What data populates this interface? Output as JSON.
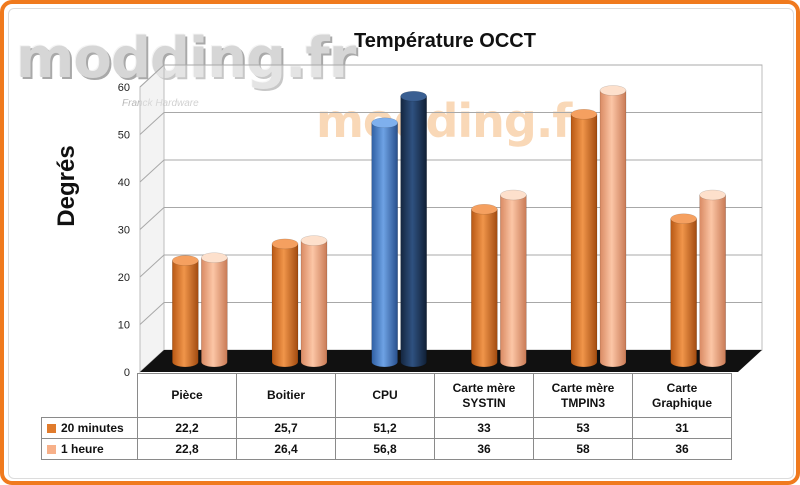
{
  "branding": {
    "logo": "modding.fr",
    "logo_sub": "Franck Hardware",
    "watermark": "modding.fr"
  },
  "colors": {
    "s1": "#e07b2c",
    "s2": "#f7b089",
    "cpu1": "#4e86cf",
    "cpu2": "#1f3b63",
    "frame": "#f07a1e"
  },
  "chart_data": {
    "type": "bar",
    "title": "Température OCCT",
    "ylabel": "Degrés",
    "xlabel": "",
    "ylim": [
      0,
      60
    ],
    "yticks": [
      "0",
      "10",
      "20",
      "30",
      "40",
      "50",
      "60"
    ],
    "categories": [
      "Pièce",
      "Boitier",
      "CPU",
      "Carte mère SYSTIN",
      "Carte mère TMPIN3",
      "Carte Graphique"
    ],
    "category_lines": [
      [
        "Pièce"
      ],
      [
        "Boitier"
      ],
      [
        "CPU"
      ],
      [
        "Carte mère",
        "SYSTIN"
      ],
      [
        "Carte mère",
        "TMPIN3"
      ],
      [
        "Carte",
        "Graphique"
      ]
    ],
    "series": [
      {
        "name": "20 minutes",
        "values": [
          22.2,
          25.7,
          51.2,
          33,
          53,
          31
        ],
        "labels": [
          "22,2",
          "25,7",
          "51,2",
          "33",
          "53",
          "31"
        ]
      },
      {
        "name": "1 heure",
        "values": [
          22.8,
          26.4,
          56.8,
          36,
          58,
          36
        ],
        "labels": [
          "22,8",
          "26,4",
          "56,8",
          "36",
          "58",
          "36"
        ]
      }
    ],
    "legend": "table-left",
    "grid": true
  }
}
